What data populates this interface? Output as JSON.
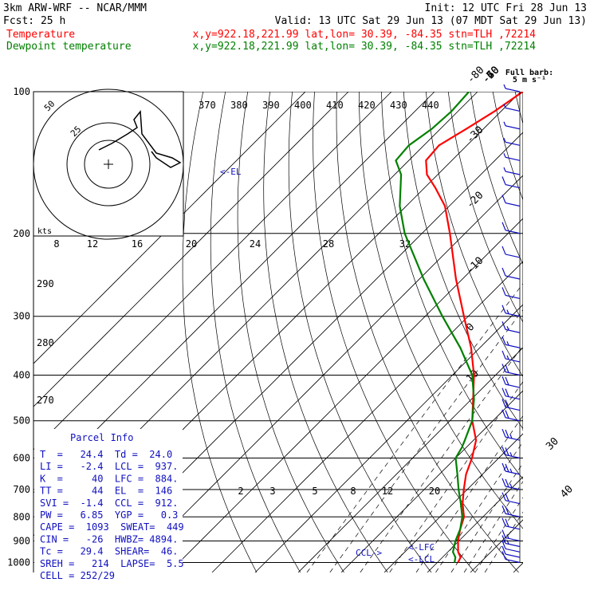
{
  "header": {
    "line1_left": "3km ARW-WRF -- NCAR/MMM",
    "line1_right": "Init: 12 UTC Fri 28 Jun 13",
    "line2_left": "Fcst:    25 h",
    "line2_right": "Valid: 13 UTC Sat 29 Jun 13 (07 MDT Sat 29 Jun 13)",
    "line3_label": "Temperature",
    "line3_info": "x,y=922.18,221.99   lat,lon= 30.39, -84.35  stn=TLH ,72214",
    "line4_label": "Dewpoint temperature",
    "line4_info": "x,y=922.18,221.99   lat,lon= 30.39, -84.35  stn=TLH ,72214"
  },
  "colors": {
    "temperature": "#ff0000",
    "dewpoint": "#008000",
    "text_blue": "#1010c0",
    "grid": "#000000"
  },
  "wind_key": {
    "line1": "Full barb:",
    "line2": "5 m s⁻¹"
  },
  "hodograph": {
    "ring_labels": [
      "25",
      "50"
    ],
    "units_label": "kts"
  },
  "el_marker": "<-EL",
  "lfc_marker": "<-LFC",
  "lcl_marker": "<-LCL",
  "ccl_marker": "CCL->",
  "parcel_info": {
    "title": "Parcel Info",
    "rows": [
      "T  =   24.4  Td =  24.0",
      "LI =   -2.4  LCL =  937.",
      "K  =     40  LFC =  884.",
      "TT =     44  EL  =  146",
      "SVI =  -1.4  CCL =  912.",
      "PW =   6.85  YGP =   0.3",
      "CAPE =  1093  SWEAT=  449",
      "CIN =   -26  HWBZ= 4894.",
      "Tc =   29.4  SHEAR=  46.",
      "SREH =   214  LAPSE=  5.5",
      "CELL = 252/29"
    ]
  },
  "chart_data": {
    "type": "line",
    "title": "Skew-T log-P sounding",
    "xlabel": "",
    "ylabel": "",
    "pressure_levels": [
      100,
      200,
      300,
      400,
      500,
      600,
      700,
      800,
      900,
      1000
    ],
    "isotherm_labels": [
      -80,
      -70,
      -60,
      -50,
      -40,
      -30,
      -20,
      -10,
      0,
      10,
      20,
      30,
      40
    ],
    "theta_labels": [
      370,
      380,
      390,
      400,
      410,
      420,
      430,
      440
    ],
    "theta_left_labels": [
      290,
      280,
      270
    ],
    "mixing_ratio_labels_upper": [
      8,
      12,
      16,
      20,
      24,
      28,
      32
    ],
    "mixing_ratio_labels_lower": [
      2,
      3,
      5,
      8,
      12,
      20
    ],
    "series": [
      {
        "name": "Temperature",
        "points": [
          {
            "p": 1000,
            "t": 24.8
          },
          {
            "p": 975,
            "t": 24.2
          },
          {
            "p": 950,
            "t": 22.4
          },
          {
            "p": 900,
            "t": 19.8
          },
          {
            "p": 850,
            "t": 17.6
          },
          {
            "p": 800,
            "t": 15.6
          },
          {
            "p": 750,
            "t": 12.2
          },
          {
            "p": 700,
            "t": 9.2
          },
          {
            "p": 650,
            "t": 6.2
          },
          {
            "p": 600,
            "t": 3.8
          },
          {
            "p": 550,
            "t": 0.6
          },
          {
            "p": 500,
            "t": -4.8
          },
          {
            "p": 450,
            "t": -9.6
          },
          {
            "p": 400,
            "t": -15.0
          },
          {
            "p": 350,
            "t": -22.0
          },
          {
            "p": 300,
            "t": -31.0
          },
          {
            "p": 250,
            "t": -41.5
          },
          {
            "p": 200,
            "t": -53.5
          },
          {
            "p": 175,
            "t": -61.0
          },
          {
            "p": 160,
            "t": -67.5
          },
          {
            "p": 150,
            "t": -72.5
          },
          {
            "p": 140,
            "t": -76.0
          },
          {
            "p": 130,
            "t": -76.5
          },
          {
            "p": 120,
            "t": -74.0
          },
          {
            "p": 110,
            "t": -71.5
          },
          {
            "p": 100,
            "t": -69.5
          }
        ]
      },
      {
        "name": "Dewpoint temperature",
        "points": [
          {
            "p": 1000,
            "t": 24.0
          },
          {
            "p": 975,
            "t": 23.0
          },
          {
            "p": 950,
            "t": 21.2
          },
          {
            "p": 900,
            "t": 19.2
          },
          {
            "p": 850,
            "t": 17.6
          },
          {
            "p": 800,
            "t": 15.2
          },
          {
            "p": 750,
            "t": 11.8
          },
          {
            "p": 700,
            "t": 8.0
          },
          {
            "p": 650,
            "t": 4.2
          },
          {
            "p": 600,
            "t": 0.0
          },
          {
            "p": 570,
            "t": -1.0
          },
          {
            "p": 550,
            "t": -2.0
          },
          {
            "p": 500,
            "t": -4.8
          },
          {
            "p": 450,
            "t": -9.4
          },
          {
            "p": 400,
            "t": -15.4
          },
          {
            "p": 350,
            "t": -24.5
          },
          {
            "p": 300,
            "t": -36.0
          },
          {
            "p": 250,
            "t": -49.0
          },
          {
            "p": 200,
            "t": -64.0
          },
          {
            "p": 175,
            "t": -71.5
          },
          {
            "p": 150,
            "t": -78.5
          },
          {
            "p": 140,
            "t": -83.0
          },
          {
            "p": 130,
            "t": -83.5
          },
          {
            "p": 120,
            "t": -82.0
          },
          {
            "p": 110,
            "t": -81.5
          },
          {
            "p": 100,
            "t": -82.0
          }
        ]
      }
    ],
    "wind_barbs": [
      {
        "p": 1000,
        "speed_kt": 10
      },
      {
        "p": 975,
        "speed_kt": 12
      },
      {
        "p": 950,
        "speed_kt": 14
      },
      {
        "p": 925,
        "speed_kt": 16
      },
      {
        "p": 900,
        "speed_kt": 18
      },
      {
        "p": 850,
        "speed_kt": 20
      },
      {
        "p": 800,
        "speed_kt": 22
      },
      {
        "p": 750,
        "speed_kt": 24
      },
      {
        "p": 700,
        "speed_kt": 26
      },
      {
        "p": 650,
        "speed_kt": 28
      },
      {
        "p": 600,
        "speed_kt": 26
      },
      {
        "p": 550,
        "speed_kt": 25
      },
      {
        "p": 500,
        "speed_kt": 24
      },
      {
        "p": 475,
        "speed_kt": 22
      },
      {
        "p": 450,
        "speed_kt": 22
      },
      {
        "p": 425,
        "speed_kt": 20
      },
      {
        "p": 400,
        "speed_kt": 20
      },
      {
        "p": 375,
        "speed_kt": 18
      },
      {
        "p": 350,
        "speed_kt": 18
      },
      {
        "p": 325,
        "speed_kt": 16
      },
      {
        "p": 300,
        "speed_kt": 16
      },
      {
        "p": 275,
        "speed_kt": 14
      },
      {
        "p": 250,
        "speed_kt": 14
      },
      {
        "p": 225,
        "speed_kt": 12
      },
      {
        "p": 200,
        "speed_kt": 12
      },
      {
        "p": 175,
        "speed_kt": 10
      },
      {
        "p": 160,
        "speed_kt": 10
      },
      {
        "p": 150,
        "speed_kt": 8
      },
      {
        "p": 140,
        "speed_kt": 8
      },
      {
        "p": 130,
        "speed_kt": 8
      },
      {
        "p": 120,
        "speed_kt": 6
      },
      {
        "p": 110,
        "speed_kt": 6
      },
      {
        "p": 100,
        "speed_kt": 5
      }
    ],
    "grid": true,
    "legend": "top-left"
  }
}
